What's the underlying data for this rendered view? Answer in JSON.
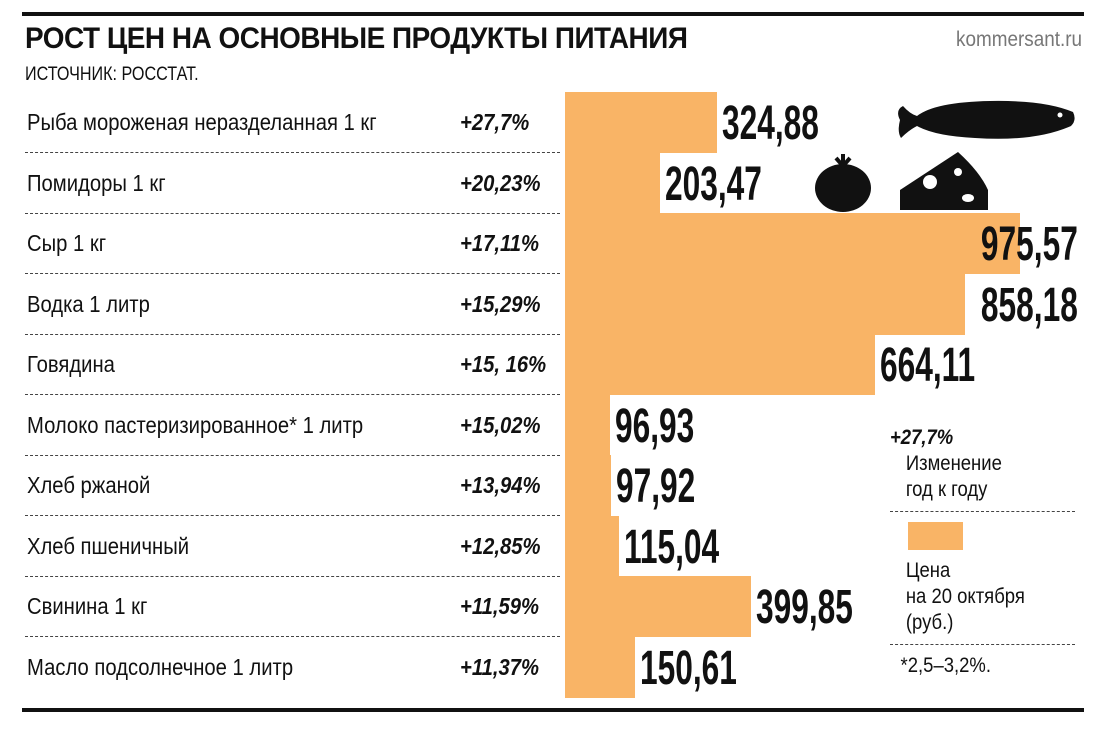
{
  "header": {
    "title": "РОСТ ЦЕН НА ОСНОВНЫЕ ПРОДУКТЫ ПИТАНИЯ",
    "site": "kommersant.ru",
    "source": "ИСТОЧНИК: РОССТАТ."
  },
  "colors": {
    "bar": "#F9B466",
    "text": "#111111"
  },
  "icons": [
    "fish-icon",
    "tomato-icon",
    "cheese-icon"
  ],
  "chart_data": {
    "type": "bar",
    "orientation": "horizontal",
    "categories": [
      "Рыба мороженая неразделанная 1 кг",
      "Помидоры 1 кг",
      "Сыр 1 кг",
      "Водка 1 литр",
      "Говядина",
      "Молоко пастеризированное* 1 литр",
      "Хлеб ржаной",
      "Хлеб пшеничный",
      "Свинина 1 кг",
      "Масло подсолнечное 1 литр"
    ],
    "changes": [
      "+27,7%",
      "+20,23%",
      "+17,11%",
      "+15,29%",
      "+15, 16%",
      "+15,02%",
      "+13,94%",
      "+12,85%",
      "+11,59%",
      "+11,37%"
    ],
    "values": [
      324.88,
      203.47,
      975.57,
      858.18,
      664.11,
      96.93,
      97.92,
      115.04,
      399.85,
      150.61
    ],
    "value_labels": [
      "324,88",
      "203,47",
      "975,57",
      "858,18",
      "664,11",
      "96,93",
      "97,92",
      "115,04",
      "399,85",
      "150,61"
    ],
    "xlim": [
      0,
      1000
    ],
    "grid": false
  },
  "legend": {
    "change_example": "+27,7%",
    "change_line1": "Изменение",
    "change_line2": "год к году",
    "price_line1": "Цена",
    "price_line2": "на 20 октября",
    "price_line3": "(руб.)",
    "footnote": "*2,5–3,2%."
  }
}
